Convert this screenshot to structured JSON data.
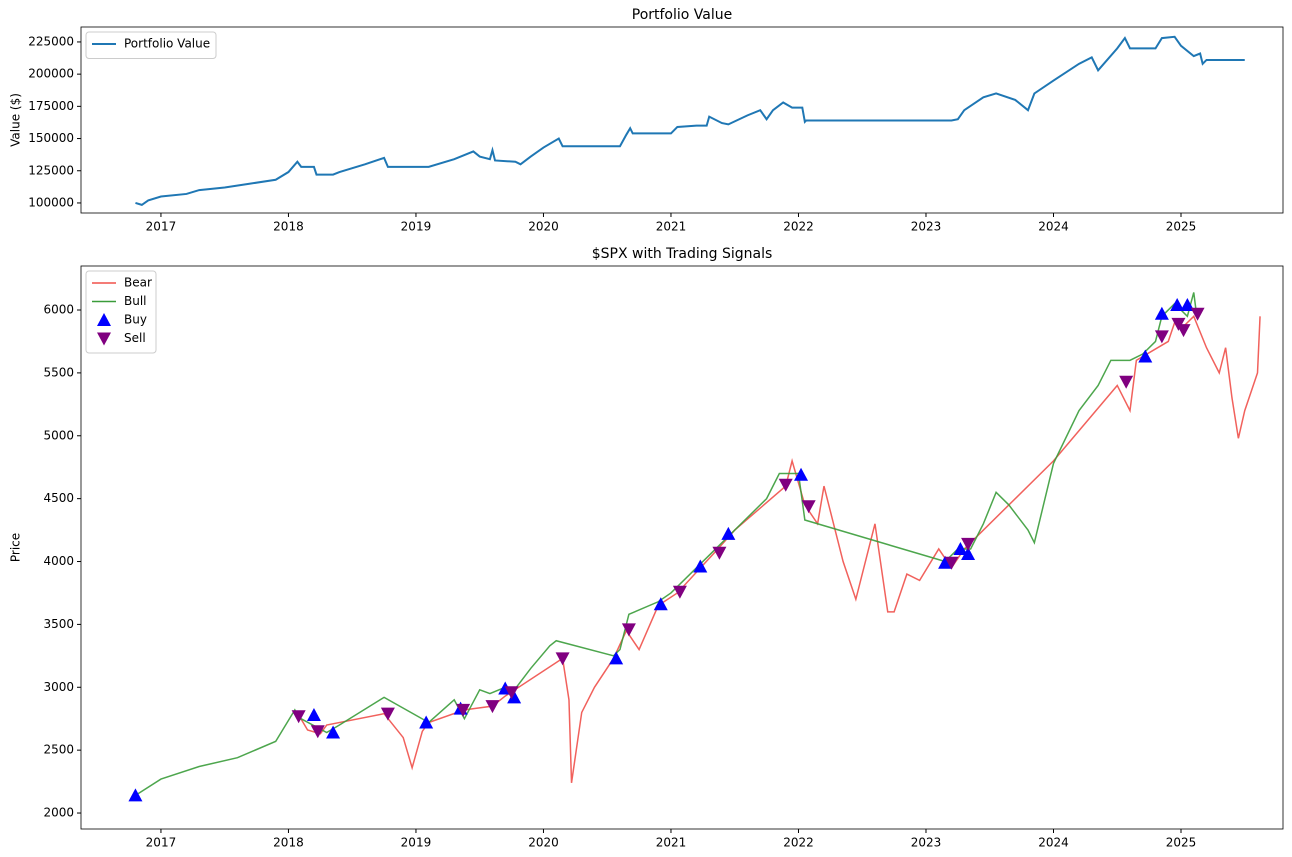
{
  "chart_data": [
    {
      "type": "line",
      "title": "Portfolio Value",
      "ylabel": "Value ($)",
      "legend": "upper left",
      "xlim": [
        2016.373,
        2025.8
      ],
      "xticks": [
        2017,
        2018,
        2019,
        2020,
        2021,
        2022,
        2023,
        2024,
        2025
      ],
      "ylim": [
        92200,
        236600
      ],
      "yticks": [
        100000,
        125000,
        150000,
        175000,
        200000,
        225000
      ],
      "series": [
        {
          "name": "Portfolio Value",
          "color": "#1f77b4",
          "kind": "line",
          "x": [
            2016.8,
            2016.85,
            2016.9,
            2017.0,
            2017.2,
            2017.3,
            2017.5,
            2017.7,
            2017.9,
            2018.0,
            2018.07,
            2018.1,
            2018.2,
            2018.22,
            2018.35,
            2018.4,
            2018.6,
            2018.75,
            2018.78,
            2019.1,
            2019.3,
            2019.45,
            2019.5,
            2019.58,
            2019.6,
            2019.62,
            2019.78,
            2019.82,
            2019.9,
            2020.0,
            2020.12,
            2020.15,
            2020.6,
            2020.65,
            2020.68,
            2020.7,
            2021.0,
            2021.05,
            2021.2,
            2021.28,
            2021.3,
            2021.4,
            2021.45,
            2021.6,
            2021.7,
            2021.75,
            2021.8,
            2021.88,
            2021.95,
            2022.03,
            2022.05,
            2022.06,
            2023.2,
            2023.25,
            2023.3,
            2023.45,
            2023.55,
            2023.7,
            2023.8,
            2023.85,
            2024.0,
            2024.2,
            2024.3,
            2024.35,
            2024.5,
            2024.56,
            2024.6,
            2024.8,
            2024.85,
            2024.95,
            2025.0,
            2025.1,
            2025.15,
            2025.17,
            2025.2,
            2025.5
          ],
          "values": [
            100000,
            98500,
            102000,
            105000,
            107000,
            110000,
            112000,
            115000,
            118000,
            124000,
            132000,
            128000,
            128000,
            122000,
            122000,
            124000,
            130000,
            135000,
            128000,
            128000,
            134000,
            140000,
            136000,
            134000,
            141000,
            133000,
            132000,
            130000,
            136000,
            143000,
            150000,
            144000,
            144000,
            153000,
            158000,
            154000,
            154000,
            159000,
            160000,
            160000,
            167000,
            162000,
            161000,
            168000,
            172000,
            165000,
            172000,
            178000,
            174000,
            174000,
            163000,
            164000,
            164000,
            165000,
            172000,
            182000,
            185000,
            180000,
            172000,
            185000,
            195000,
            208000,
            213000,
            203000,
            220000,
            228000,
            220000,
            220000,
            228000,
            229000,
            222000,
            214000,
            216000,
            208000,
            211000,
            211000
          ]
        }
      ]
    },
    {
      "type": "line",
      "title": "$SPX with Trading Signals",
      "ylabel": "Price",
      "legend": "upper left",
      "xlim": [
        2016.373,
        2025.8
      ],
      "xticks": [
        2017,
        2018,
        2019,
        2020,
        2021,
        2022,
        2023,
        2024,
        2025
      ],
      "ylim": [
        1873,
        6350
      ],
      "yticks": [
        2000,
        2500,
        3000,
        3500,
        4000,
        4500,
        5000,
        5500,
        6000
      ],
      "series": [
        {
          "name": "Bear",
          "color": "#f0504a",
          "kind": "line",
          "x": [
            2018.08,
            2018.15,
            2018.25,
            2018.3,
            2018.75,
            2018.9,
            2018.97,
            2019.05,
            2019.1,
            2019.38,
            2019.6,
            2019.7,
            2020.15,
            2020.2,
            2020.22,
            2020.3,
            2020.4,
            2020.55,
            2020.65,
            2020.75,
            2020.9,
            2021.05,
            2021.25,
            2021.35,
            2021.5,
            2021.9,
            2021.95,
            2022.05,
            2022.15,
            2022.2,
            2022.35,
            2022.45,
            2022.6,
            2022.7,
            2022.75,
            2022.85,
            2022.95,
            2023.1,
            2023.2,
            2023.3,
            2023.35,
            2024.0,
            2024.5,
            2024.6,
            2024.65,
            2024.9,
            2024.95,
            2025.0,
            2025.1,
            2025.2,
            2025.3,
            2025.35,
            2025.4,
            2025.45,
            2025.5,
            2025.6,
            2025.62
          ],
          "values": [
            2780,
            2660,
            2630,
            2700,
            2790,
            2600,
            2360,
            2650,
            2720,
            2820,
            2850,
            2930,
            3230,
            2900,
            2240,
            2800,
            3000,
            3230,
            3450,
            3300,
            3650,
            3750,
            3970,
            4080,
            4250,
            4600,
            4800,
            4450,
            4300,
            4600,
            4000,
            3700,
            4300,
            3600,
            3600,
            3900,
            3850,
            4100,
            3950,
            4100,
            4150,
            4800,
            5400,
            5200,
            5600,
            5750,
            5900,
            5850,
            5950,
            5700,
            5500,
            5700,
            5300,
            4980,
            5200,
            5500,
            5950
          ]
        },
        {
          "name": "Bull",
          "color": "#3a9c3a",
          "kind": "line",
          "x": [
            2016.8,
            2017.0,
            2017.3,
            2017.6,
            2017.9,
            2018.05,
            2018.08,
            2018.3,
            2018.4,
            2018.75,
            2019.1,
            2019.3,
            2019.38,
            2019.5,
            2019.58,
            2019.7,
            2019.75,
            2019.9,
            2020.05,
            2020.1,
            2020.55,
            2020.6,
            2020.67,
            2020.9,
            2021.0,
            2021.2,
            2021.4,
            2021.6,
            2021.75,
            2021.85,
            2022.0,
            2022.05,
            2023.15,
            2023.25,
            2023.35,
            2023.45,
            2023.55,
            2023.65,
            2023.8,
            2023.85,
            2024.0,
            2024.2,
            2024.35,
            2024.45,
            2024.6,
            2024.7,
            2024.8,
            2024.85,
            2024.95,
            2025.05,
            2025.1,
            2025.12
          ],
          "values": [
            2140,
            2270,
            2370,
            2440,
            2570,
            2820,
            2760,
            2640,
            2700,
            2920,
            2720,
            2900,
            2750,
            2980,
            2950,
            3000,
            2950,
            3150,
            3330,
            3370,
            3250,
            3300,
            3580,
            3680,
            3750,
            3950,
            4150,
            4350,
            4500,
            4700,
            4700,
            4330,
            4000,
            4100,
            4100,
            4300,
            4550,
            4450,
            4250,
            4150,
            4780,
            5200,
            5400,
            5600,
            5600,
            5650,
            5750,
            5950,
            6050,
            5950,
            6140,
            5980
          ]
        },
        {
          "name": "Buy",
          "color": "#0000ff",
          "kind": "marker",
          "marker": "triangle-up",
          "x": [
            2016.8,
            2018.2,
            2018.35,
            2019.08,
            2019.35,
            2019.7,
            2019.77,
            2020.57,
            2020.92,
            2021.23,
            2021.45,
            2022.02,
            2023.15,
            2023.27,
            2023.33,
            2024.72,
            2024.85,
            2024.97,
            2025.05
          ],
          "values": [
            2140,
            2780,
            2640,
            2720,
            2830,
            2990,
            2920,
            3230,
            3660,
            3960,
            4220,
            4690,
            3990,
            4100,
            4060,
            5630,
            5970,
            6040,
            6040
          ]
        },
        {
          "name": "Sell",
          "color": "#800080",
          "kind": "marker",
          "marker": "triangle-down",
          "x": [
            2018.08,
            2018.23,
            2018.78,
            2019.37,
            2019.6,
            2019.75,
            2020.15,
            2020.67,
            2021.07,
            2021.38,
            2021.9,
            2022.08,
            2023.2,
            2023.33,
            2024.57,
            2024.85,
            2024.98,
            2025.02,
            2025.13
          ],
          "values": [
            2770,
            2650,
            2790,
            2820,
            2850,
            2960,
            3230,
            3460,
            3760,
            4070,
            4610,
            4440,
            3990,
            4140,
            5430,
            5790,
            5890,
            5840,
            5970
          ]
        }
      ]
    }
  ]
}
